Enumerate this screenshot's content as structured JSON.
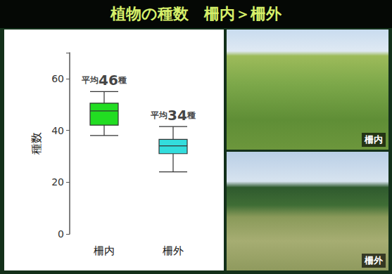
{
  "chart_data": {
    "type": "boxplot",
    "title": "植物の種数　柵内＞柵外",
    "categories": [
      "柵内",
      "柵外"
    ],
    "values": [
      [
        38,
        42,
        47.5,
        50.5,
        55
      ],
      [
        24,
        31,
        34,
        36.5,
        41.5
      ]
    ],
    "colors": [
      "#22dd22",
      "#33dddd"
    ],
    "y_label": "種数",
    "ylim": [
      0,
      70
    ],
    "yticks": [
      0,
      20,
      40,
      60
    ],
    "grid": false,
    "annotations": [
      {
        "text": "平均46種",
        "category": "柵内"
      },
      {
        "text": "平均34種",
        "category": "柵外"
      }
    ]
  },
  "photos": [
    {
      "label": "柵内"
    },
    {
      "label": "柵外"
    }
  ]
}
